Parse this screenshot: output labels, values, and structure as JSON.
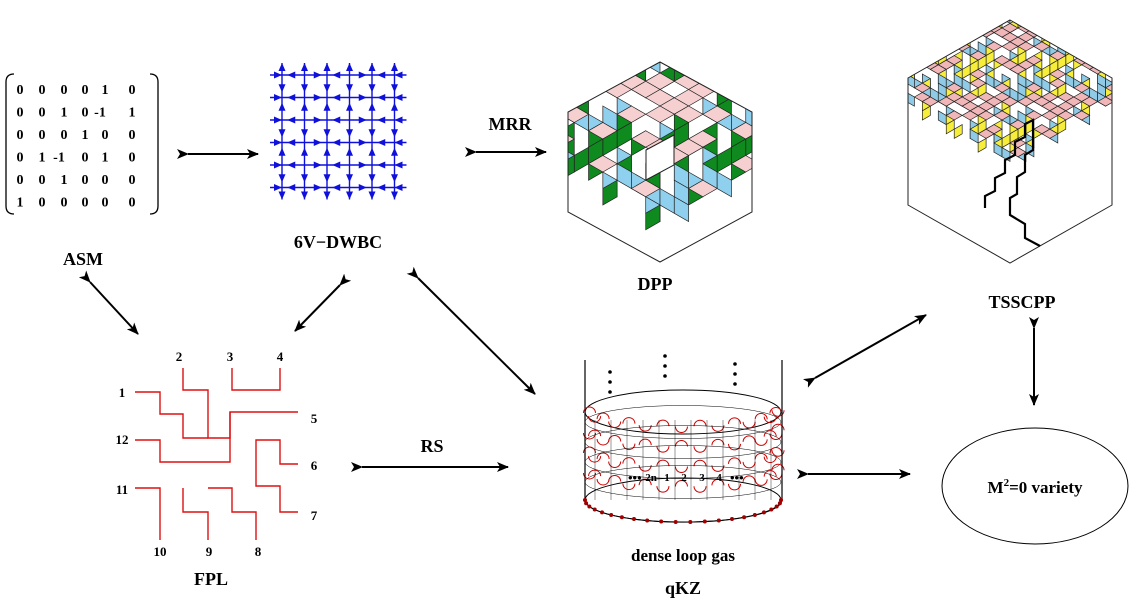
{
  "labels": {
    "asm": "ASM",
    "sixv": "6V−DWBC",
    "dpp": "DPP",
    "tsscpp": "TSSCPP",
    "fpl": "FPL",
    "dense": "dense loop gas",
    "qkz": "qKZ",
    "variety_prefix": "M",
    "variety_sup": "2",
    "variety_suffix": "=0 variety"
  },
  "arrow_labels": {
    "mrr": "MRR",
    "rs": "RS"
  },
  "asm_matrix": [
    [
      "0",
      "0",
      "0",
      "0",
      "1",
      "0"
    ],
    [
      "0",
      "0",
      "1",
      "0",
      "-1",
      "1"
    ],
    [
      "0",
      "0",
      "0",
      "1",
      "0",
      "0"
    ],
    [
      "0",
      "1",
      "-1",
      "0",
      "1",
      "0"
    ],
    [
      "0",
      "0",
      "1",
      "0",
      "0",
      "0"
    ],
    [
      "1",
      "0",
      "0",
      "0",
      "0",
      "0"
    ]
  ],
  "fpl_numbers": {
    "n1": "1",
    "n2": "2",
    "n3": "3",
    "n4": "4",
    "n5": "5",
    "n6": "6",
    "n7": "7",
    "n8": "8",
    "n9": "9",
    "n10": "10",
    "n11": "11",
    "n12": "12"
  },
  "cylinder_numbers": {
    "d1": "2n",
    "d2": "1",
    "d3": "2",
    "d4": "3",
    "d5": "4"
  },
  "colors": {
    "sixv_arrows": "#1010dd",
    "fpl_lines": "#dd1111",
    "dpp_top": "#f6cfd0",
    "dpp_left": "#8fd0ee",
    "dpp_right": "#0e8a1e",
    "tsscpp_yellow": "#f6ee3a",
    "tsscpp_pink": "#f0b6b8",
    "tsscpp_blue": "#8fcbe6",
    "loop_red": "#cc0000",
    "dot_red": "#a00000"
  }
}
